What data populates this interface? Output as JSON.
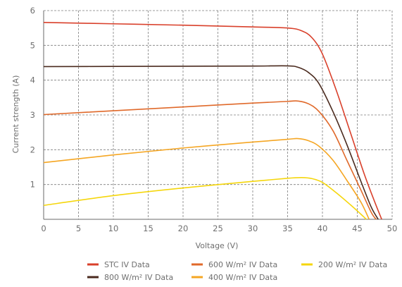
{
  "chart_data": {
    "type": "line",
    "xlabel": "Voltage (V)",
    "ylabel": "Current strength (A)",
    "xlim": [
      0,
      50
    ],
    "ylim": [
      0,
      6
    ],
    "x_ticks": [
      "0",
      "5",
      "10",
      "15",
      "20",
      "25",
      "30",
      "35",
      "40",
      "45",
      "50"
    ],
    "y_ticks": [
      "1",
      "2",
      "3",
      "4",
      "5",
      "6"
    ],
    "grid": true,
    "legend_position": "bottom",
    "series": [
      {
        "name": "STC IV Data",
        "color": "#d9402b",
        "points": [
          [
            0,
            5.66
          ],
          [
            10,
            5.62
          ],
          [
            20,
            5.58
          ],
          [
            30,
            5.53
          ],
          [
            35,
            5.5
          ],
          [
            37,
            5.42
          ],
          [
            38.5,
            5.22
          ],
          [
            40,
            4.75
          ],
          [
            42,
            3.7
          ],
          [
            44,
            2.5
          ],
          [
            46,
            1.3
          ],
          [
            47.5,
            0.5
          ],
          [
            48.5,
            0
          ]
        ]
      },
      {
        "name": "800 W/m² IV Data",
        "color": "#4a2a1e",
        "points": [
          [
            0,
            4.39
          ],
          [
            10,
            4.395
          ],
          [
            20,
            4.4
          ],
          [
            30,
            4.405
          ],
          [
            35,
            4.41
          ],
          [
            36.5,
            4.37
          ],
          [
            38,
            4.22
          ],
          [
            39.5,
            3.9
          ],
          [
            41.5,
            3.1
          ],
          [
            43.5,
            2.15
          ],
          [
            45.5,
            1.1
          ],
          [
            47,
            0.35
          ],
          [
            48,
            0
          ]
        ]
      },
      {
        "name": "600 W/m² IV Data",
        "color": "#e0692a",
        "points": [
          [
            0,
            3.01
          ],
          [
            10,
            3.12
          ],
          [
            20,
            3.23
          ],
          [
            30,
            3.34
          ],
          [
            35,
            3.39
          ],
          [
            36.5,
            3.4
          ],
          [
            38,
            3.32
          ],
          [
            39.5,
            3.1
          ],
          [
            41.5,
            2.55
          ],
          [
            43.5,
            1.7
          ],
          [
            45.5,
            0.85
          ],
          [
            47,
            0.2
          ],
          [
            47.7,
            0
          ]
        ]
      },
      {
        "name": "400 W/m² IV Data",
        "color": "#f5a623",
        "points": [
          [
            0,
            1.63
          ],
          [
            10,
            1.85
          ],
          [
            20,
            2.05
          ],
          [
            30,
            2.22
          ],
          [
            35,
            2.3
          ],
          [
            36.5,
            2.32
          ],
          [
            38,
            2.26
          ],
          [
            39.5,
            2.1
          ],
          [
            41.5,
            1.7
          ],
          [
            43.5,
            1.12
          ],
          [
            45.5,
            0.5
          ],
          [
            46.7,
            0
          ]
        ]
      },
      {
        "name": "200 W/m² IV Data",
        "color": "#f5d60c",
        "points": [
          [
            0,
            0.4
          ],
          [
            10,
            0.68
          ],
          [
            20,
            0.9
          ],
          [
            30,
            1.09
          ],
          [
            35,
            1.18
          ],
          [
            37,
            1.2
          ],
          [
            38.5,
            1.17
          ],
          [
            40,
            1.06
          ],
          [
            42,
            0.76
          ],
          [
            44,
            0.42
          ],
          [
            45.5,
            0.15
          ],
          [
            46.3,
            0
          ]
        ]
      }
    ]
  }
}
